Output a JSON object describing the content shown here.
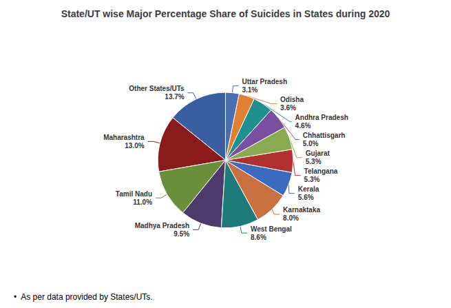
{
  "chart_data": {
    "type": "pie",
    "title": "State/UT wise Major Percentage Share of Suicides in States during 2020",
    "annotations": [
      "•  As per data provided by States/UTs."
    ],
    "categories": [
      "Other States/UTs",
      "Maharashtra",
      "Tamil Nadu",
      "Madhya Pradesh",
      "West Bengal",
      "Karnaktaka",
      "Kerala",
      "Telangana",
      "Gujarat",
      "Chhattisgarh",
      "Andhra Pradesh",
      "Odisha",
      "Uttar Pradesh"
    ],
    "values": [
      13.7,
      13.0,
      11.0,
      9.5,
      8.6,
      8.0,
      5.6,
      5.3,
      5.3,
      5.0,
      4.6,
      3.6,
      3.1
    ],
    "value_labels": [
      "13.7%",
      "13.0%",
      "11.0%",
      "9.5%",
      "8.6%",
      "8.0%",
      "5.6%",
      "5.3%",
      "5.3%",
      "5.0%",
      "4.6%",
      "3.6%",
      "3.1%"
    ],
    "colors": [
      "#3A5FA0",
      "#8B1A1A",
      "#6B8E3A",
      "#4B3A6B",
      "#1E7B7B",
      "#C87040",
      "#3A6BBF",
      "#B03030",
      "#8AAA50",
      "#7B4FA0",
      "#1E9090",
      "#E08030",
      "#4A6FB0"
    ],
    "data_labels": true
  }
}
